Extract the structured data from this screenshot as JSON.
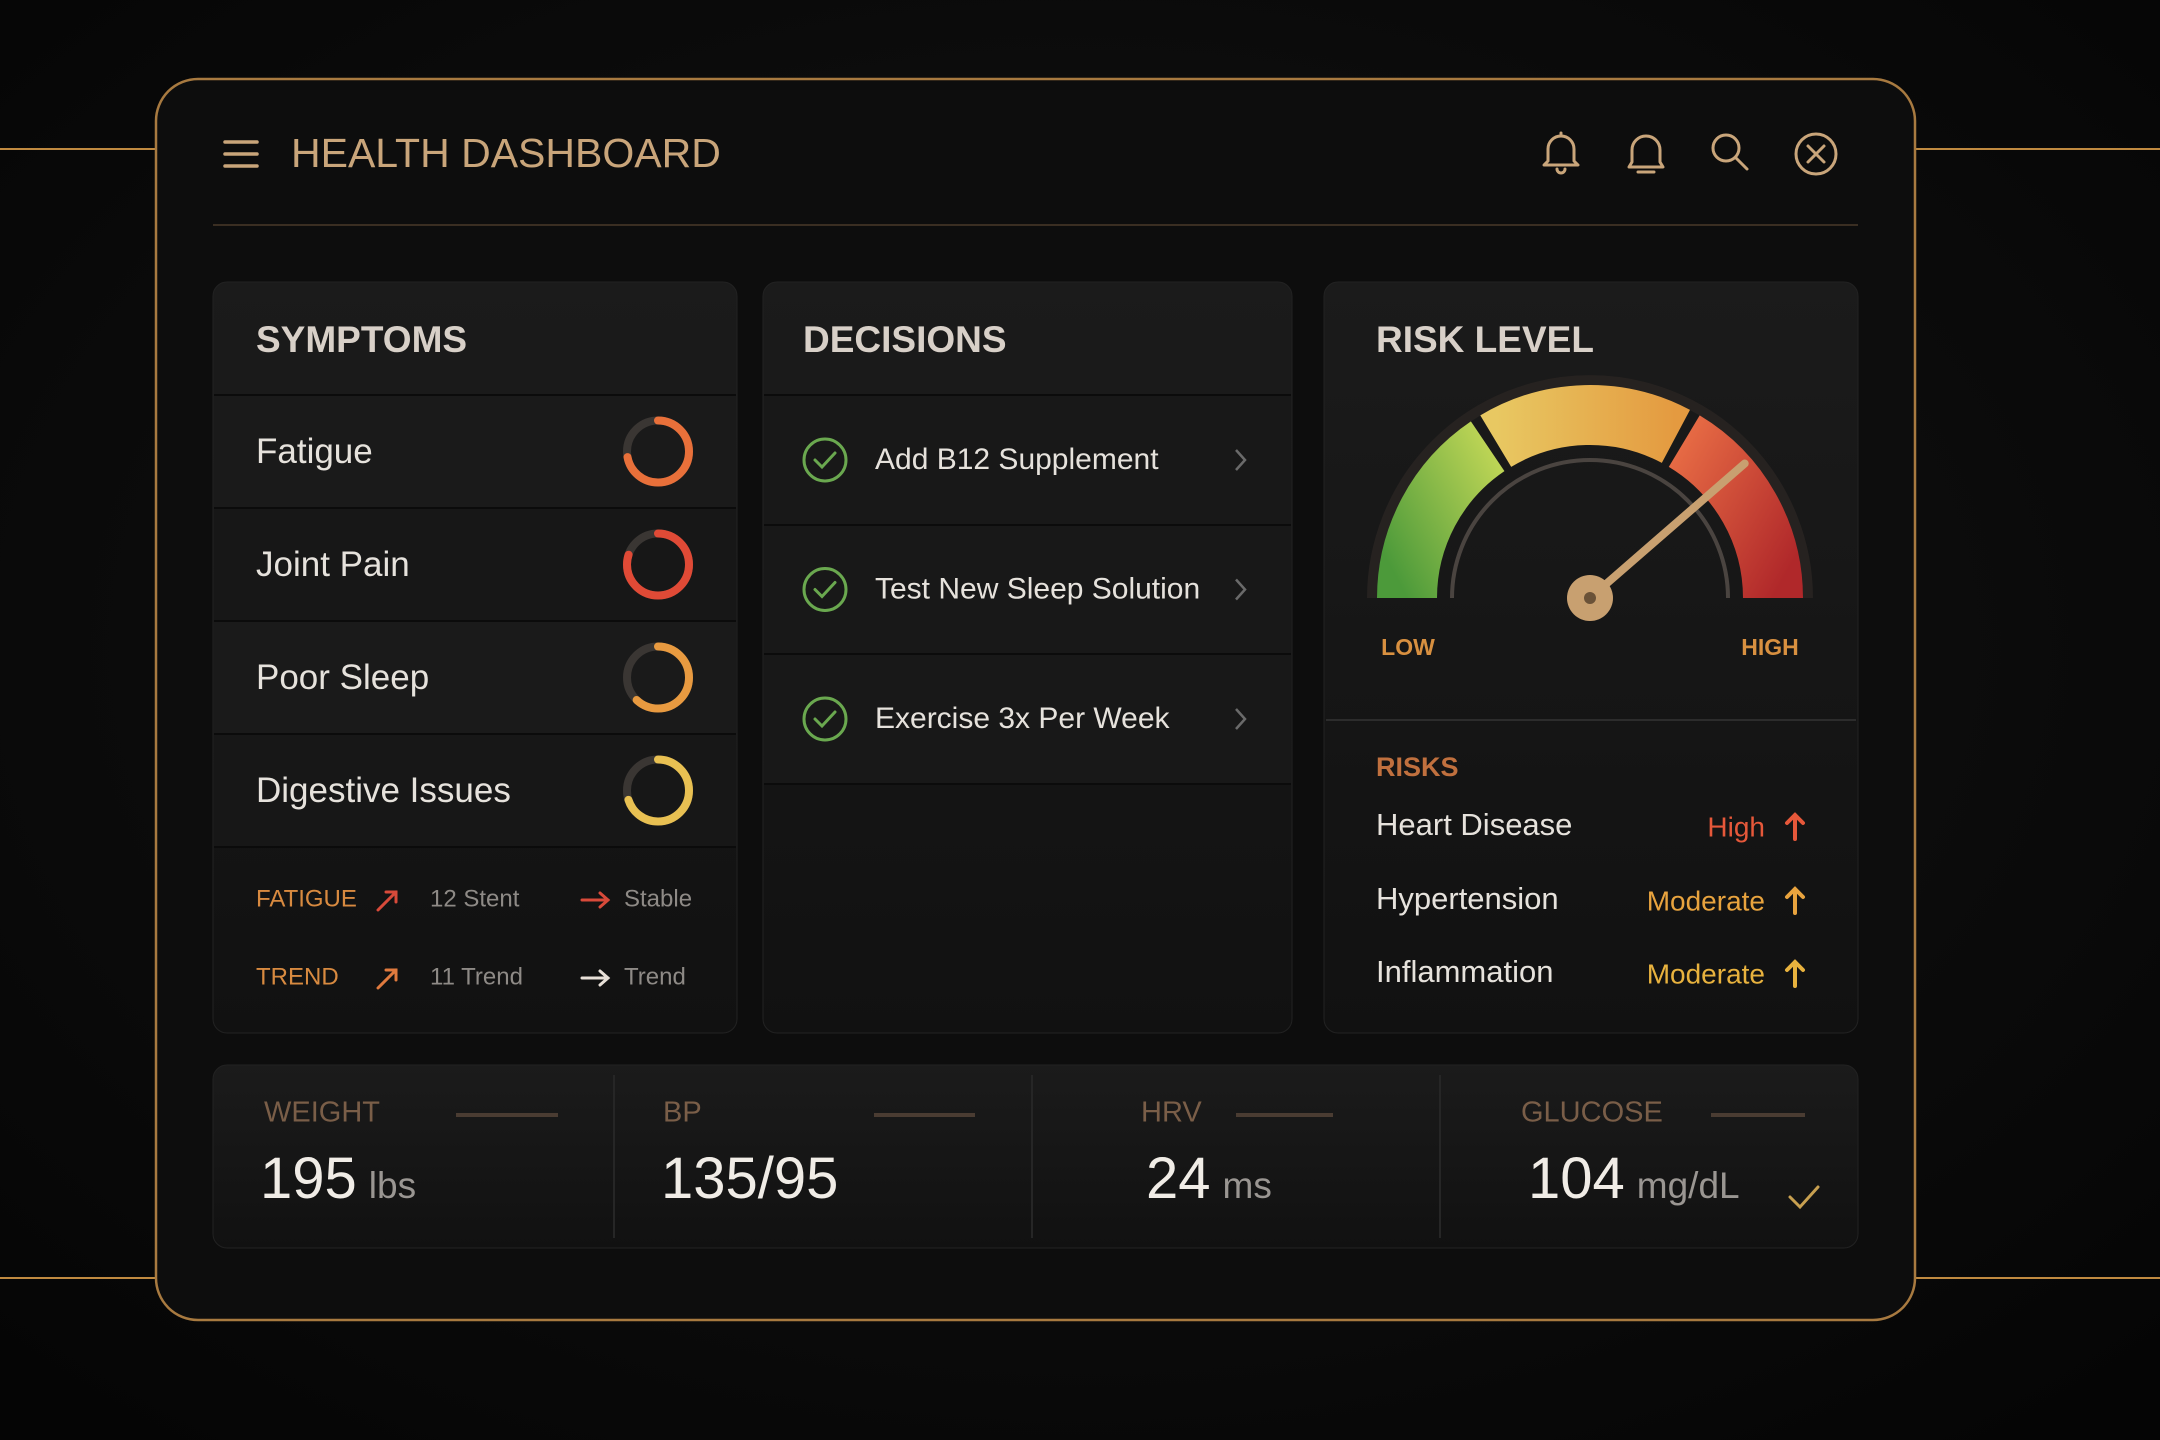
{
  "header": {
    "title": "HEALTH DASHBOARD"
  },
  "symptoms": {
    "title": "SYMPTOMS",
    "items": [
      "Fatigue",
      "Joint Pain",
      "Poor Sleep",
      "Digestive Issues"
    ],
    "trends": [
      [
        "FATIGUE",
        "12 Stent",
        "Stable"
      ],
      [
        "TREND",
        "11 Trend",
        "Trend"
      ]
    ]
  },
  "decisions": {
    "title": "DECISIONS",
    "items": [
      "Add B12 Supplement",
      "Test New Sleep Solution",
      "Exercise 3x Per Week"
    ]
  },
  "risk_level": {
    "title": "RISK LEVEL",
    "low": "LOW",
    "high": "HIGH",
    "risks_title": "RISKS",
    "risks": [
      {
        "name": "Heart Disease",
        "level": "High",
        "color": "#e6583a"
      },
      {
        "name": "Hypertension",
        "level": "Moderate",
        "color": "#e8a33e"
      },
      {
        "name": "Inflammation",
        "level": "Moderate",
        "color": "#e8b23e"
      }
    ]
  },
  "metrics": [
    {
      "label": "WEIGHT",
      "value": "195",
      "unit": "lbs"
    },
    {
      "label": "BP",
      "value": "135/95"
    },
    {
      "label": "HRV",
      "value": "24",
      "unit": "ms"
    },
    {
      "label": "GLUCOSE",
      "value": "104",
      "unit": "mg/dL"
    }
  ]
}
